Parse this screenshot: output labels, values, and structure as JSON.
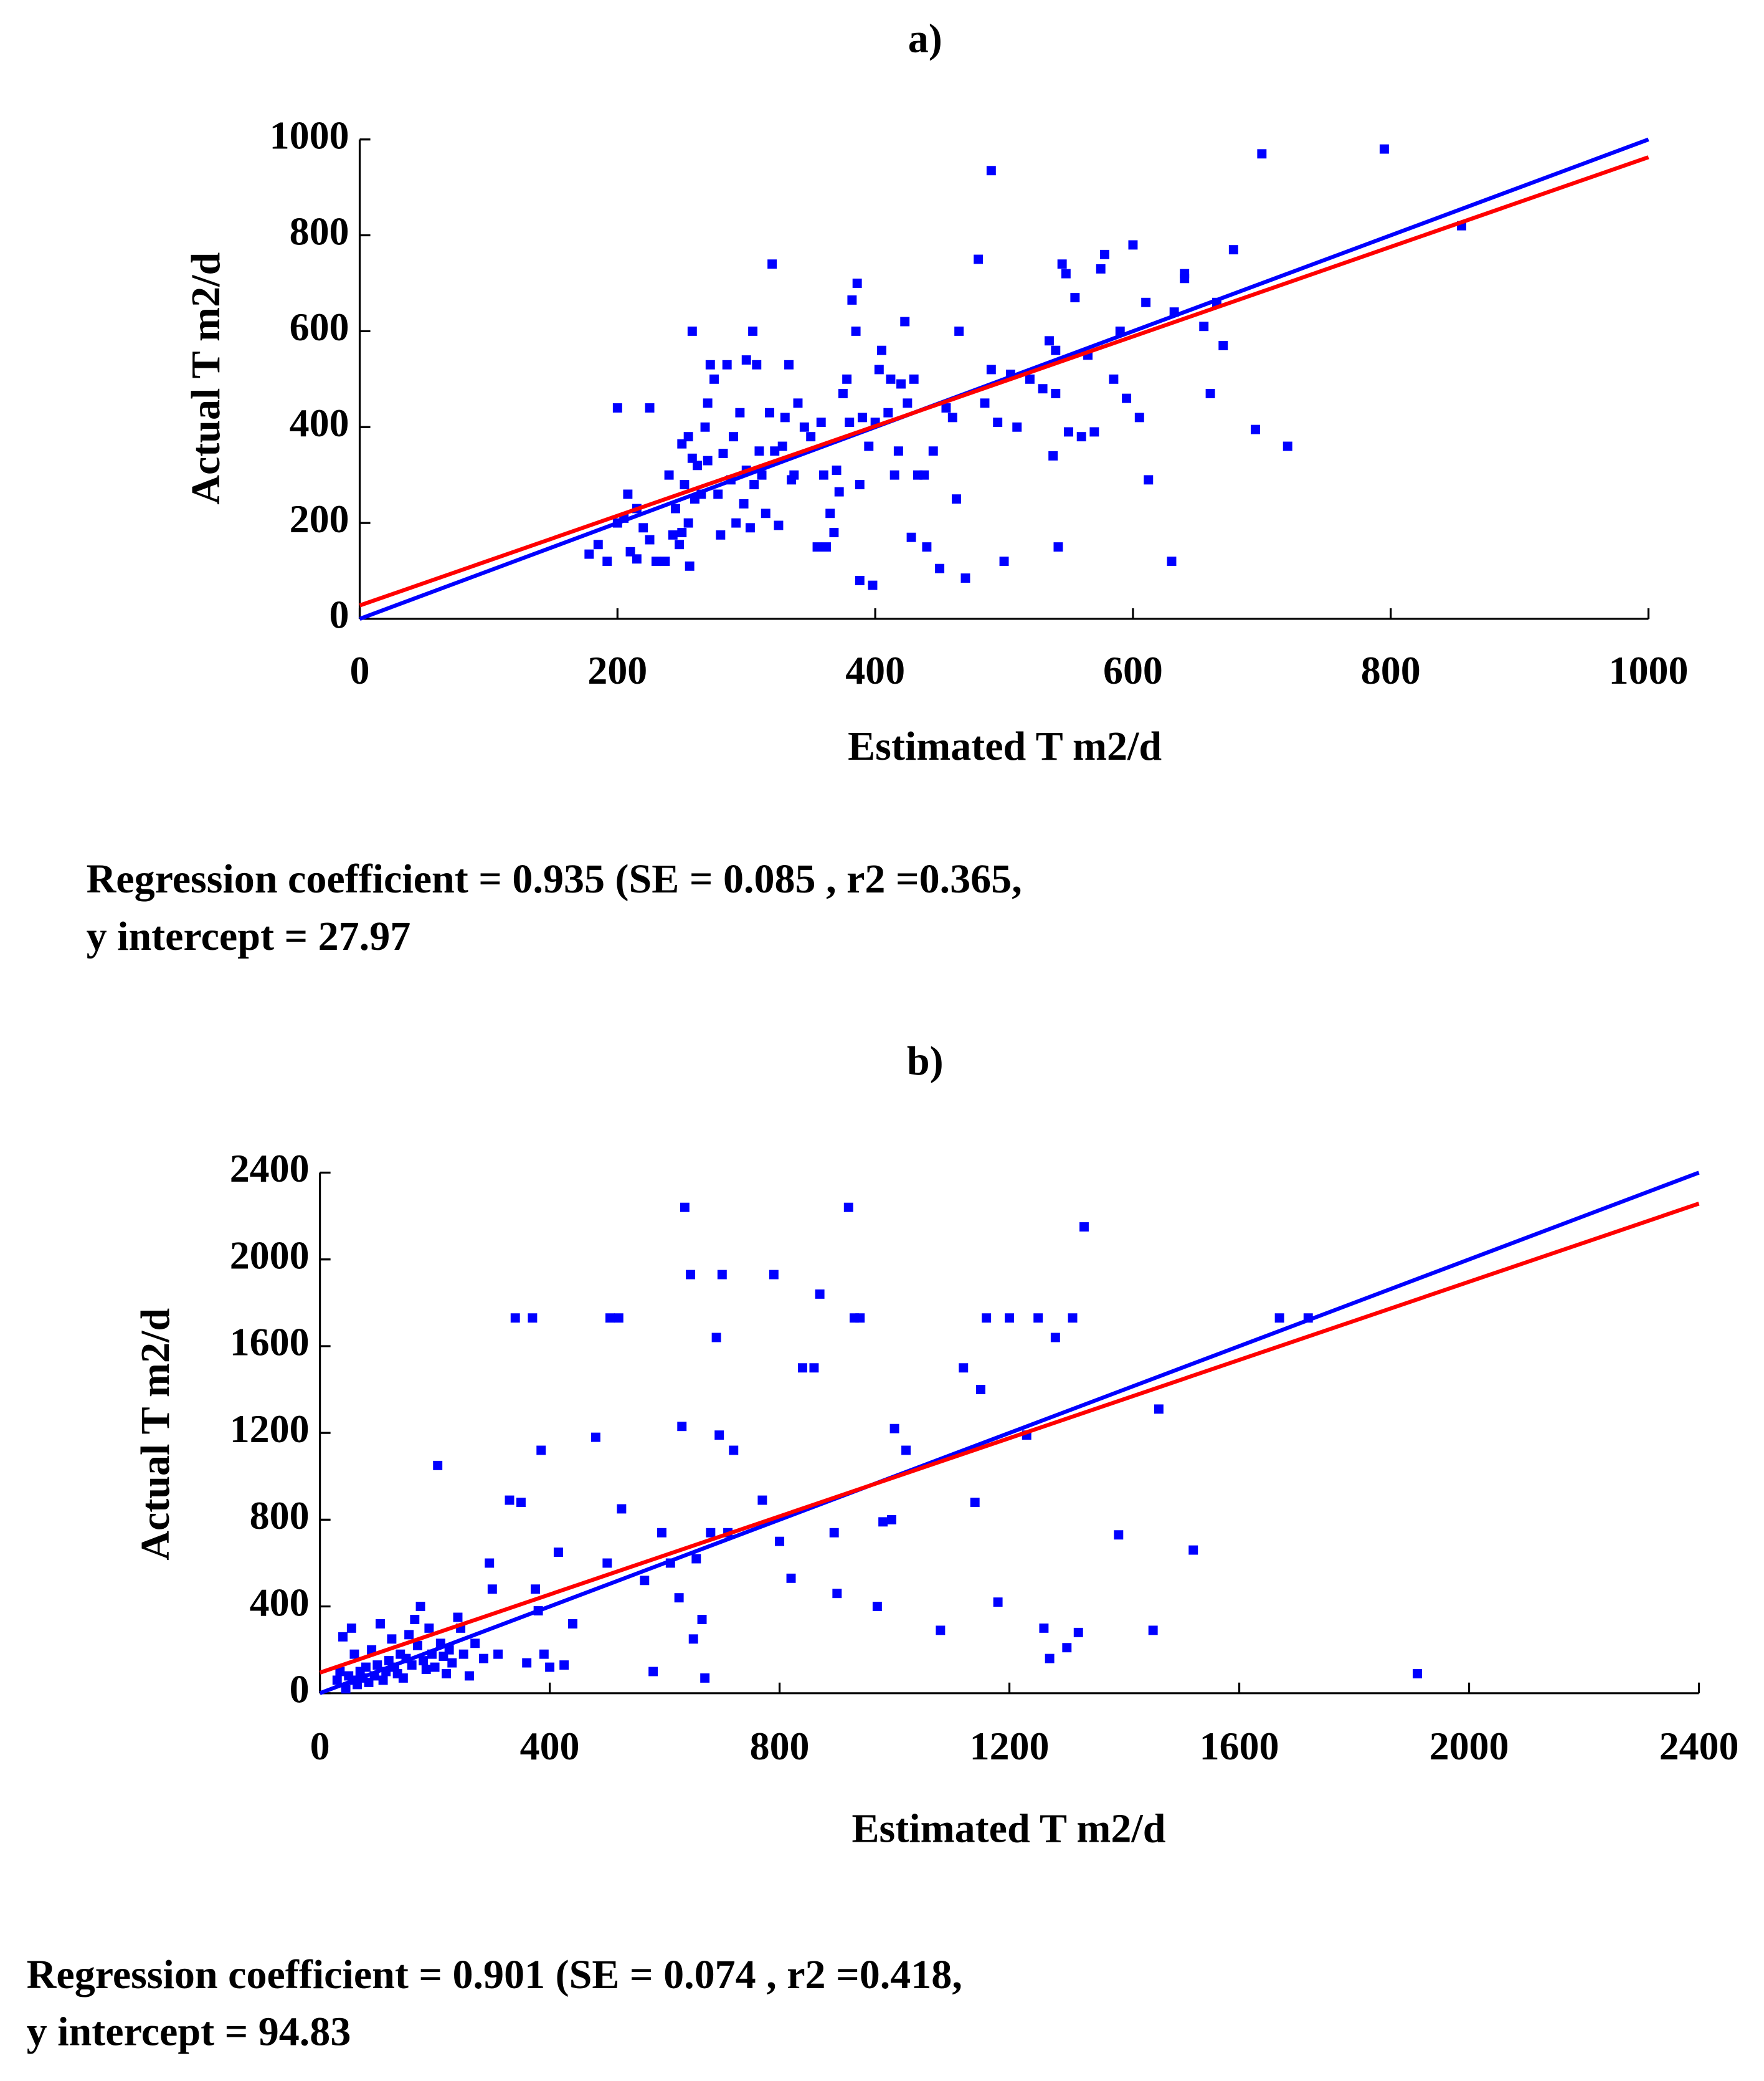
{
  "chart_data": [
    {
      "type": "scatter",
      "title": "a)",
      "x_label": "Estimated T m2/d",
      "y_label": "Actual T m2/d",
      "annotations": [
        "Regression coefficient = 0.935 (SE = 0.085 , r2 =0.365,",
        "y intercept = 27.97"
      ],
      "xlim": [
        0,
        1000
      ],
      "ylim": [
        0,
        1000
      ],
      "xticks": [
        0,
        200,
        400,
        600,
        800,
        1000
      ],
      "yticks": [
        0,
        200,
        400,
        600,
        800,
        1000
      ],
      "series": [
        {
          "mode": "markers",
          "color": "#0000ff",
          "x": [
            178,
            185,
            192,
            200,
            200,
            205,
            208,
            210,
            215,
            215,
            220,
            225,
            225,
            230,
            237,
            240,
            243,
            245,
            248,
            250,
            250,
            252,
            255,
            255,
            256,
            258,
            258,
            260,
            262,
            265,
            268,
            270,
            270,
            272,
            275,
            278,
            280,
            282,
            285,
            288,
            290,
            292,
            295,
            298,
            300,
            300,
            303,
            305,
            306,
            308,
            310,
            312,
            315,
            318,
            320,
            322,
            325,
            328,
            330,
            333,
            335,
            337,
            340,
            345,
            350,
            355,
            358,
            360,
            362,
            365,
            368,
            370,
            372,
            375,
            378,
            380,
            382,
            385,
            386,
            388,
            388,
            390,
            395,
            398,
            400,
            403,
            405,
            410,
            412,
            415,
            418,
            420,
            423,
            425,
            428,
            430,
            433,
            438,
            440,
            445,
            450,
            455,
            460,
            463,
            465,
            470,
            480,
            485,
            490,
            495,
            500,
            505,
            510,
            520,
            530,
            535,
            538,
            540,
            542,
            545,
            548,
            550,
            555,
            560,
            565,
            570,
            575,
            578,
            585,
            590,
            595,
            600,
            605,
            610,
            612,
            630,
            632,
            640,
            655,
            660,
            665,
            670,
            678,
            695,
            700,
            720,
            795,
            855,
            490,
            640,
            540
          ],
          "values": [
            135,
            155,
            120,
            440,
            200,
            210,
            260,
            140,
            230,
            125,
            190,
            165,
            440,
            120,
            120,
            300,
            175,
            230,
            155,
            180,
            365,
            280,
            200,
            380,
            110,
            600,
            335,
            250,
            320,
            260,
            400,
            330,
            450,
            530,
            500,
            260,
            175,
            345,
            530,
            290,
            380,
            200,
            430,
            240,
            310,
            540,
            190,
            600,
            280,
            530,
            350,
            300,
            220,
            430,
            740,
            350,
            195,
            360,
            420,
            530,
            290,
            300,
            450,
            400,
            380,
            150,
            410,
            300,
            150,
            220,
            180,
            310,
            265,
            470,
            500,
            410,
            665,
            600,
            700,
            280,
            80,
            420,
            360,
            70,
            410,
            520,
            560,
            430,
            500,
            300,
            350,
            490,
            620,
            450,
            170,
            500,
            300,
            300,
            150,
            350,
            105,
            440,
            420,
            250,
            600,
            85,
            750,
            450,
            520,
            410,
            120,
            510,
            400,
            500,
            480,
            580,
            340,
            470,
            150,
            740,
            720,
            390,
            670,
            380,
            550,
            390,
            730,
            760,
            500,
            600,
            460,
            780,
            420,
            660,
            290,
            120,
            640,
            710,
            610,
            470,
            660,
            570,
            770,
            395,
            970,
            360,
            980,
            820,
            935,
            720,
            560
          ]
        },
        {
          "mode": "lines",
          "color": "#0000ff",
          "x": [
            0,
            1000
          ],
          "values": [
            0,
            1000
          ]
        },
        {
          "mode": "lines",
          "color": "#ff0000",
          "x": [
            0,
            1000
          ],
          "values": [
            27.97,
            962.97
          ]
        }
      ]
    },
    {
      "type": "scatter",
      "title": "b)",
      "x_label": "Estimated T m2/d",
      "y_label": "Actual T m2/d",
      "annotations": [
        "Regression coefficient = 0.901 (SE = 0.074 , r2 =0.418,",
        "y intercept = 94.83"
      ],
      "xlim": [
        0,
        2400
      ],
      "ylim": [
        0,
        2400
      ],
      "xticks": [
        0,
        400,
        800,
        1200,
        1600,
        2000,
        2400
      ],
      "yticks": [
        0,
        400,
        800,
        1200,
        1600,
        2000,
        2400
      ],
      "series": [
        {
          "mode": "markers",
          "color": "#0000ff",
          "x": [
            30,
            35,
            40,
            45,
            50,
            55,
            60,
            60,
            65,
            70,
            75,
            80,
            85,
            90,
            95,
            100,
            105,
            110,
            115,
            120,
            125,
            130,
            135,
            140,
            145,
            150,
            155,
            160,
            165,
            170,
            175,
            180,
            185,
            190,
            195,
            200,
            205,
            210,
            215,
            220,
            225,
            230,
            240,
            245,
            250,
            260,
            270,
            285,
            295,
            300,
            310,
            330,
            340,
            350,
            360,
            370,
            375,
            380,
            385,
            390,
            400,
            415,
            425,
            440,
            480,
            500,
            505,
            520,
            525,
            565,
            580,
            595,
            610,
            625,
            630,
            635,
            645,
            650,
            655,
            665,
            670,
            680,
            690,
            695,
            700,
            710,
            720,
            770,
            790,
            800,
            820,
            840,
            860,
            870,
            895,
            900,
            920,
            930,
            940,
            970,
            980,
            995,
            1000,
            1020,
            1080,
            1120,
            1140,
            1150,
            1160,
            1180,
            1200,
            1230,
            1250,
            1260,
            1270,
            1280,
            1300,
            1310,
            1320,
            1330,
            1450,
            1460,
            1390,
            1520,
            1670,
            1720,
            1910
          ],
          "values": [
            60,
            100,
            260,
            20,
            80,
            300,
            60,
            180,
            40,
            100,
            70,
            120,
            50,
            200,
            80,
            130,
            320,
            60,
            100,
            150,
            250,
            120,
            90,
            180,
            70,
            160,
            270,
            130,
            340,
            220,
            400,
            150,
            110,
            300,
            180,
            120,
            1050,
            230,
            170,
            90,
            200,
            140,
            350,
            300,
            180,
            80,
            230,
            160,
            600,
            480,
            180,
            890,
            1730,
            880,
            140,
            1730,
            480,
            380,
            1120,
            180,
            120,
            650,
            130,
            320,
            1180,
            600,
            1730,
            1730,
            850,
            520,
            100,
            740,
            600,
            440,
            1230,
            2240,
            1930,
            250,
            620,
            340,
            70,
            740,
            1640,
            1190,
            1930,
            740,
            1120,
            890,
            1930,
            700,
            530,
            1500,
            1500,
            1840,
            740,
            460,
            2240,
            1730,
            1730,
            400,
            790,
            800,
            1220,
            1120,
            290,
            1500,
            880,
            1400,
            1730,
            420,
            1730,
            1190,
            1730,
            300,
            160,
            1640,
            210,
            1730,
            280,
            2150,
            290,
            1310,
            730,
            660,
            1730,
            1730,
            90
          ]
        },
        {
          "mode": "lines",
          "color": "#0000ff",
          "x": [
            0,
            2400
          ],
          "values": [
            0,
            2400
          ]
        },
        {
          "mode": "lines",
          "color": "#ff0000",
          "x": [
            0,
            2400
          ],
          "values": [
            94.83,
            2257.23
          ]
        }
      ]
    }
  ]
}
